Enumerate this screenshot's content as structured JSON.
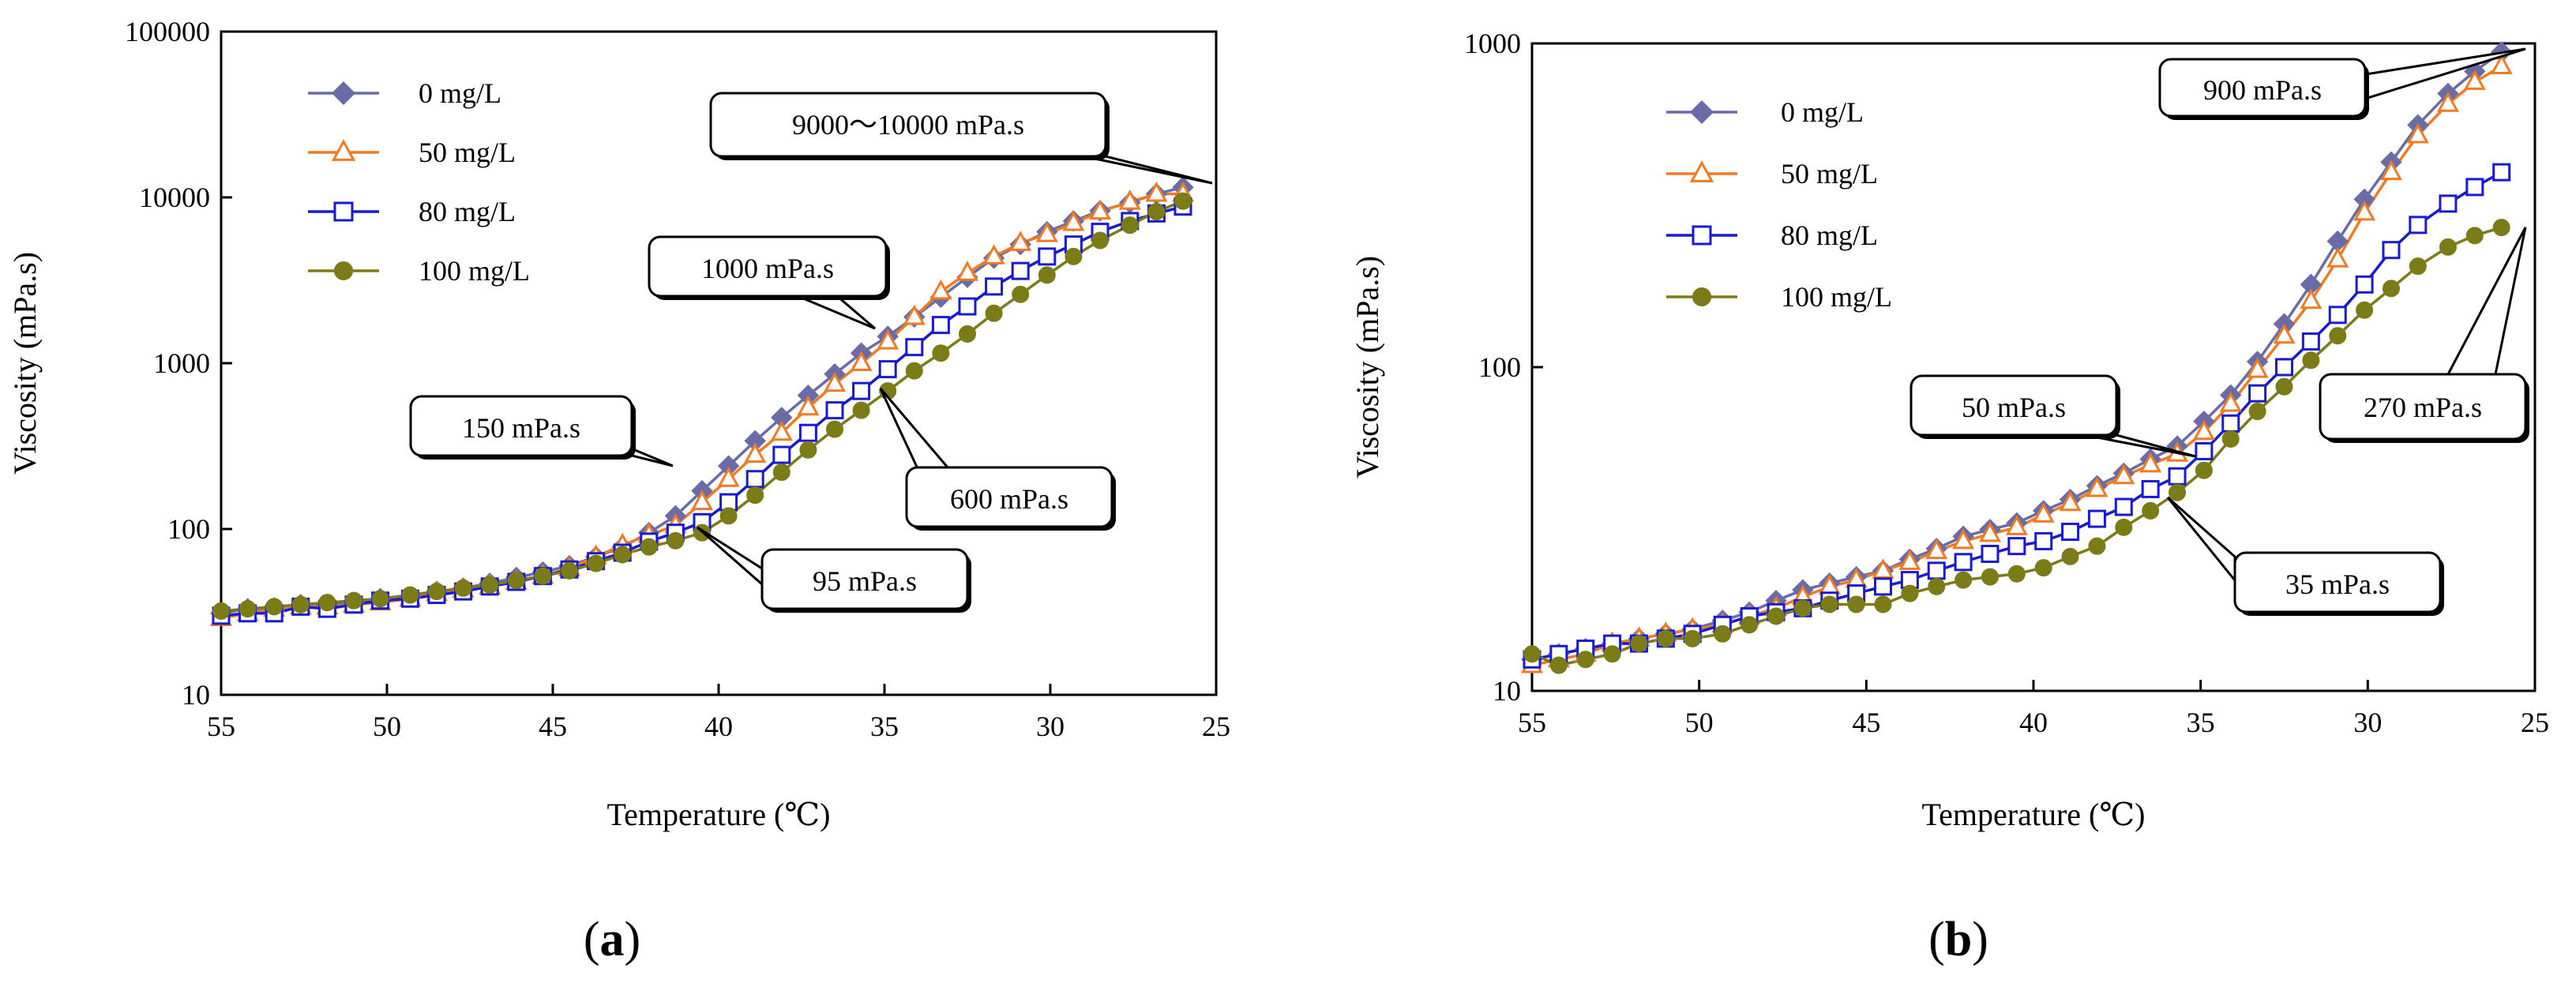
{
  "chart_data": [
    {
      "type": "line",
      "panel_label": "(a)",
      "panel_label_parts": {
        "open": "(",
        "letter": "a",
        "close": ")"
      },
      "title": "",
      "xlabel": "Temperature (℃)",
      "ylabel": "Viscosity (mPa.s)",
      "xlim": [
        55,
        25
      ],
      "ylim": [
        10,
        100000
      ],
      "yscale": "log",
      "xticks": [
        "55",
        "50",
        "45",
        "40",
        "35",
        "30",
        "25"
      ],
      "yticks": [
        "10",
        "100",
        "1000",
        "10000",
        "100000"
      ],
      "legend_position": "top-left",
      "x": [
        55,
        54.2,
        53.4,
        52.6,
        51.8,
        51,
        50.2,
        49.3,
        48.5,
        47.7,
        46.9,
        46.1,
        45.3,
        44.5,
        43.7,
        42.9,
        42.1,
        41.3,
        40.5,
        39.7,
        38.9,
        38.1,
        37.3,
        36.5,
        35.7,
        34.9,
        34.1,
        33.3,
        32.5,
        31.7,
        30.9,
        30.1,
        29.3,
        28.5,
        27.6,
        26.8,
        26
      ],
      "series": [
        {
          "name": "0 mg/L",
          "color": "#6b6ba8",
          "marker": "diamond",
          "values": [
            31,
            33,
            32,
            35,
            35,
            36,
            38,
            39,
            42,
            44,
            47,
            51,
            55,
            60,
            68,
            78,
            95,
            120,
            170,
            240,
            340,
            470,
            640,
            860,
            1150,
            1450,
            1900,
            2500,
            3300,
            4300,
            5200,
            6200,
            7200,
            8300,
            9300,
            10500,
            11500
          ]
        },
        {
          "name": "50 mg/L",
          "color": "#f07b22",
          "marker": "triangle",
          "values": [
            29,
            31,
            33,
            34,
            34,
            35,
            36,
            38,
            41,
            43,
            45,
            48,
            52,
            58,
            68,
            80,
            92,
            105,
            145,
            200,
            280,
            380,
            540,
            750,
            1000,
            1350,
            1900,
            2700,
            3500,
            4400,
            5300,
            6000,
            7000,
            8200,
            9400,
            10500,
            10500
          ]
        },
        {
          "name": "80 mg/L",
          "color": "#1a1acf",
          "marker": "square",
          "values": [
            30,
            31,
            31,
            34,
            33,
            35,
            37,
            38,
            40,
            42,
            45,
            48,
            52,
            57,
            64,
            72,
            84,
            95,
            110,
            145,
            200,
            280,
            380,
            520,
            680,
            920,
            1250,
            1700,
            2200,
            2900,
            3600,
            4400,
            5200,
            6200,
            7200,
            8000,
            8800
          ]
        },
        {
          "name": "100 mg/L",
          "color": "#7b7b17",
          "marker": "circle",
          "values": [
            32,
            33,
            34,
            35,
            36,
            37,
            38,
            40,
            42,
            44,
            46,
            49,
            52,
            56,
            62,
            70,
            78,
            85,
            95,
            120,
            160,
            220,
            300,
            400,
            520,
            680,
            900,
            1150,
            1500,
            2000,
            2600,
            3400,
            4400,
            5500,
            6800,
            8200,
            9500
          ]
        }
      ],
      "annotations": [
        {
          "text": "9000～10000 mPa.s"
        },
        {
          "text": "1000 mPa.s"
        },
        {
          "text": "150 mPa.s"
        },
        {
          "text": "600 mPa.s"
        },
        {
          "text": "95 mPa.s"
        }
      ]
    },
    {
      "type": "line",
      "panel_label": "(b)",
      "panel_label_parts": {
        "open": "(",
        "letter": "b",
        "close": ")"
      },
      "title": "",
      "xlabel": "Temperature (℃)",
      "ylabel": "Viscosity (mPa.s)",
      "xlim": [
        55,
        25
      ],
      "ylim": [
        10,
        1000
      ],
      "yscale": "log",
      "xticks": [
        "55",
        "50",
        "45",
        "40",
        "35",
        "30",
        "25"
      ],
      "yticks": [
        "10",
        "100",
        "1000"
      ],
      "legend_position": "top-left",
      "x": [
        55,
        54.2,
        53.4,
        52.6,
        51.8,
        51,
        50.2,
        49.3,
        48.5,
        47.7,
        46.9,
        46.1,
        45.3,
        44.5,
        43.7,
        42.9,
        42.1,
        41.3,
        40.5,
        39.7,
        38.9,
        38.1,
        37.3,
        36.5,
        35.7,
        34.9,
        34.1,
        33.3,
        32.5,
        31.7,
        30.9,
        30.1,
        29.3,
        28.5,
        27.6,
        26.8,
        26
      ],
      "series": [
        {
          "name": "0 mg/L",
          "color": "#6b6ba8",
          "marker": "diamond",
          "values": [
            12.5,
            13,
            13.5,
            14,
            14.5,
            15,
            15.5,
            16.5,
            17.5,
            19,
            20.5,
            21.5,
            22.5,
            23.5,
            25.5,
            27.5,
            30,
            31.5,
            33,
            36,
            39,
            43,
            47,
            52,
            57,
            68,
            82,
            104,
            136,
            180,
            245,
            330,
            430,
            560,
            700,
            820,
            940
          ]
        },
        {
          "name": "50 mg/L",
          "color": "#f07b22",
          "marker": "triangle",
          "values": [
            12,
            12.5,
            13,
            14,
            14.5,
            15,
            15.5,
            16,
            17,
            18,
            19.5,
            21,
            22,
            23.5,
            25,
            27,
            29,
            30.5,
            32,
            35,
            38,
            42,
            46,
            50,
            54,
            63,
            77,
            98,
            125,
            160,
            215,
            300,
            400,
            520,
            650,
            760,
            850
          ]
        },
        {
          "name": "80 mg/L",
          "color": "#1a1acf",
          "marker": "square",
          "values": [
            12.5,
            13,
            13.5,
            14,
            14,
            14.5,
            15,
            16,
            17,
            17.5,
            18,
            19,
            20,
            21,
            22,
            23.5,
            25,
            26.5,
            28,
            29,
            31,
            34,
            37,
            42,
            46,
            55,
            67,
            83,
            100,
            120,
            145,
            180,
            230,
            275,
            320,
            360,
            400
          ]
        },
        {
          "name": "100 mg/L",
          "color": "#7b7b17",
          "marker": "circle",
          "values": [
            13,
            12,
            12.5,
            13,
            14,
            14.5,
            14.5,
            15,
            16,
            17,
            18,
            18.5,
            18.5,
            18.5,
            20,
            21,
            22,
            22.5,
            23,
            24,
            26,
            28,
            32,
            36,
            41,
            48,
            60,
            73,
            87,
            105,
            125,
            150,
            175,
            205,
            235,
            255,
            270
          ]
        }
      ],
      "annotations": [
        {
          "text": "900 mPa.s"
        },
        {
          "text": "50 mPa.s"
        },
        {
          "text": "35 mPa.s"
        },
        {
          "text": "270 mPa.s"
        }
      ]
    }
  ]
}
